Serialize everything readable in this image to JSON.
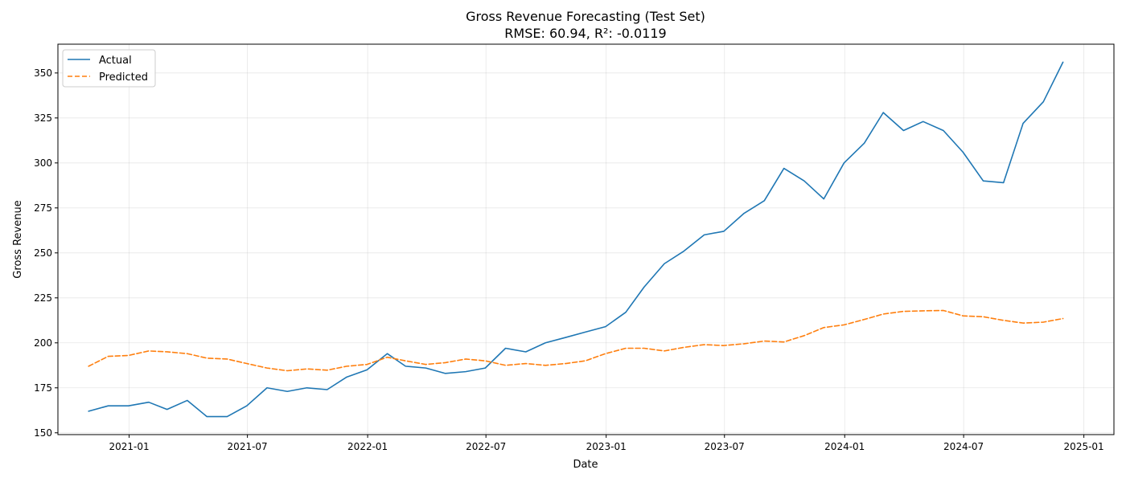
{
  "chart_data": {
    "type": "line",
    "title": "Gross Revenue Forecasting (Test Set)",
    "subtitle": "RMSE: 60.94, R²: -0.0119",
    "xlabel": "Date",
    "ylabel": "Gross Revenue",
    "xlim": [
      "2020-09-14",
      "2025-02-16"
    ],
    "ylim": [
      149,
      366
    ],
    "x_ticks": [
      "2021-01-01",
      "2021-07-01",
      "2022-01-01",
      "2022-07-01",
      "2023-01-01",
      "2023-07-01",
      "2024-01-01",
      "2024-07-01",
      "2025-01-01"
    ],
    "x_tick_labels": [
      "2021-01",
      "2021-07",
      "2022-01",
      "2022-07",
      "2023-01",
      "2023-07",
      "2024-01",
      "2024-07",
      "2025-01"
    ],
    "y_ticks": [
      150,
      175,
      200,
      225,
      250,
      275,
      300,
      325,
      350
    ],
    "y_tick_labels": [
      "150",
      "175",
      "200",
      "225",
      "250",
      "275",
      "300",
      "325",
      "350"
    ],
    "grid": true,
    "legend_position": "top-left",
    "x": [
      "2020-10-31",
      "2020-11-30",
      "2020-12-31",
      "2021-01-31",
      "2021-02-28",
      "2021-03-31",
      "2021-04-30",
      "2021-05-31",
      "2021-06-30",
      "2021-07-31",
      "2021-08-31",
      "2021-09-30",
      "2021-10-31",
      "2021-11-30",
      "2021-12-31",
      "2022-01-31",
      "2022-02-28",
      "2022-03-31",
      "2022-04-30",
      "2022-05-31",
      "2022-06-30",
      "2022-07-31",
      "2022-08-31",
      "2022-09-30",
      "2022-10-31",
      "2022-11-30",
      "2022-12-31",
      "2023-01-31",
      "2023-02-28",
      "2023-03-31",
      "2023-04-30",
      "2023-05-31",
      "2023-06-30",
      "2023-07-31",
      "2023-08-31",
      "2023-09-30",
      "2023-10-31",
      "2023-11-30",
      "2023-12-31",
      "2024-01-31",
      "2024-02-29",
      "2024-03-31",
      "2024-04-30",
      "2024-05-31",
      "2024-06-30",
      "2024-07-31",
      "2024-08-31",
      "2024-09-30",
      "2024-10-31",
      "2024-11-30"
    ],
    "series": [
      {
        "name": "Actual",
        "color": "#1f77b4",
        "style": "solid",
        "values": [
          162,
          165,
          165,
          167,
          163,
          168,
          159,
          159,
          165,
          175,
          173,
          175,
          174,
          181,
          185,
          194,
          187,
          186,
          183,
          184,
          186,
          197,
          195,
          200,
          203,
          206,
          209,
          217,
          231,
          244,
          251,
          260,
          262,
          272,
          279,
          297,
          290,
          280,
          300,
          311,
          328,
          318,
          323,
          318,
          306,
          290,
          289,
          322,
          334,
          356
        ]
      },
      {
        "name": "Predicted",
        "color": "#ff7f0e",
        "style": "dashed",
        "values": [
          187,
          192.5,
          193,
          195.5,
          195,
          194,
          191.5,
          191,
          188.5,
          186,
          184.5,
          185.5,
          184.8,
          187,
          188,
          192,
          190,
          188,
          189,
          191,
          190,
          187.5,
          188.5,
          187.5,
          188.5,
          190,
          194,
          197,
          197,
          195.5,
          197.5,
          199,
          198.5,
          199.5,
          201,
          200.5,
          204,
          208.5,
          210,
          213,
          216,
          217.5,
          217.8,
          218,
          215,
          214.5,
          212.5,
          211,
          211.5,
          213.5
        ]
      }
    ]
  }
}
